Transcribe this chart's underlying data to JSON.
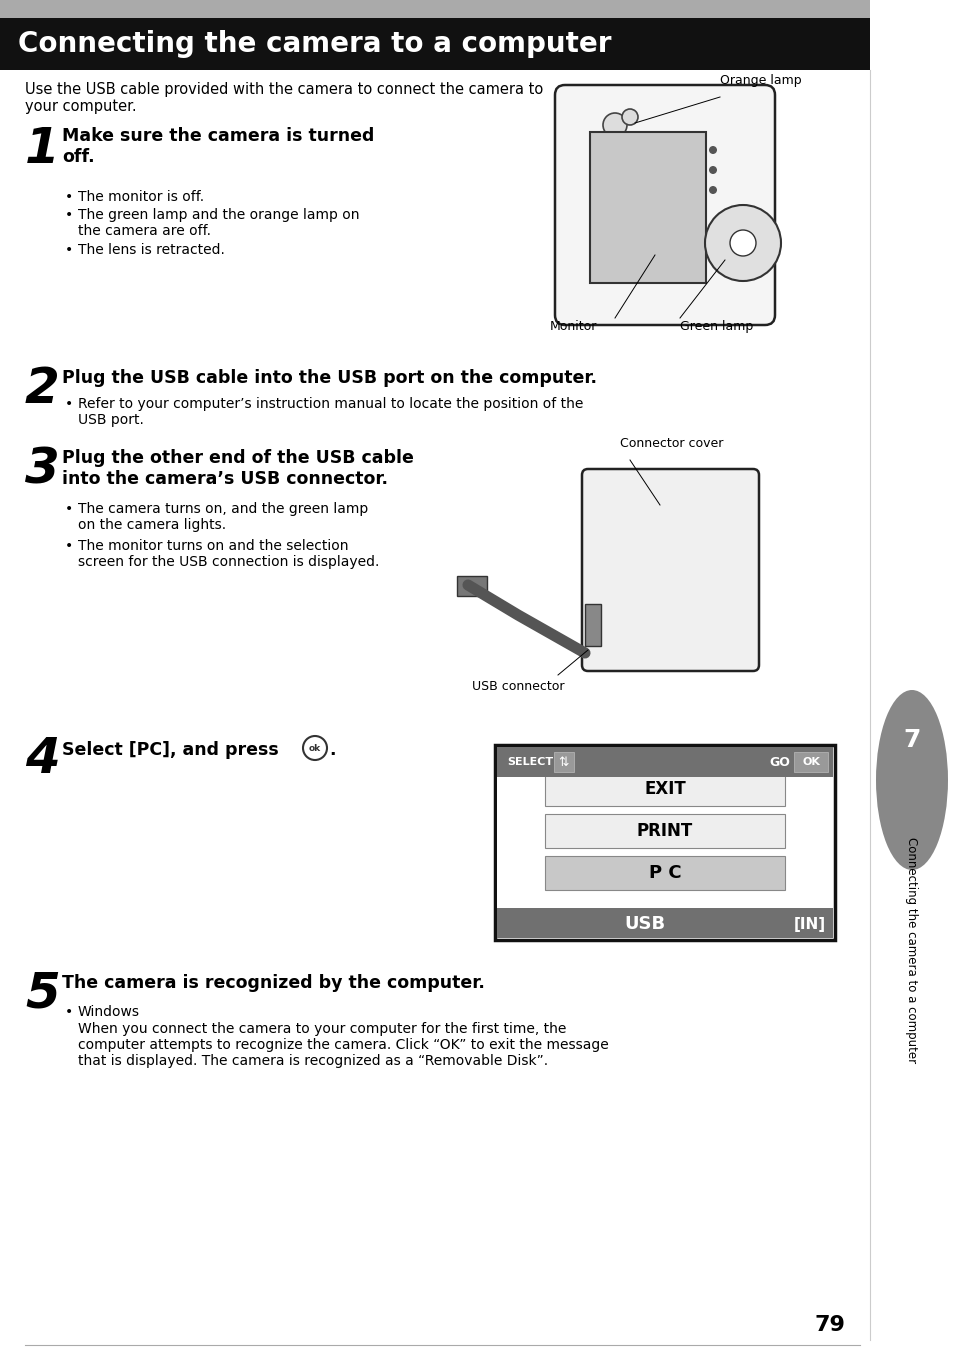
{
  "title": "Connecting the camera to a computer",
  "title_bg": "#111111",
  "title_color": "#ffffff",
  "page_bg": "#ffffff",
  "page_number": "79",
  "intro_text": "Use the USB cable provided with the camera to connect the camera to\nyour computer.",
  "sidebar_text": "Connecting the camera to a computer",
  "sidebar_number": "7",
  "sidebar_tab_color": "#888888",
  "steps": [
    {
      "number": "1",
      "heading": "Make sure the camera is turned\noff.",
      "bullets": [
        "The monitor is off.",
        "The green lamp and the orange lamp on\nthe camera are off.",
        "The lens is retracted."
      ]
    },
    {
      "number": "2",
      "heading": "Plug the USB cable into the USB port on the computer.",
      "bullets": [
        "Refer to your computer’s instruction manual to locate the position of the\nUSB port."
      ]
    },
    {
      "number": "3",
      "heading": "Plug the other end of the USB cable\ninto the camera’s USB connector.",
      "bullets": [
        "The camera turns on, and the green lamp\non the camera lights.",
        "The monitor turns on and the selection\nscreen for the USB connection is displayed."
      ]
    },
    {
      "number": "4",
      "heading": "Select [PC], and press",
      "bullets": []
    },
    {
      "number": "5",
      "heading": "The camera is recognized by the computer.",
      "bullets": [
        "Windows\nWhen you connect the camera to your computer for the first time, the\ncomputer attempts to recognize the camera. Click “OK” to exit the message\nthat is displayed. The camera is recognized as a “Removable Disk”."
      ]
    }
  ]
}
